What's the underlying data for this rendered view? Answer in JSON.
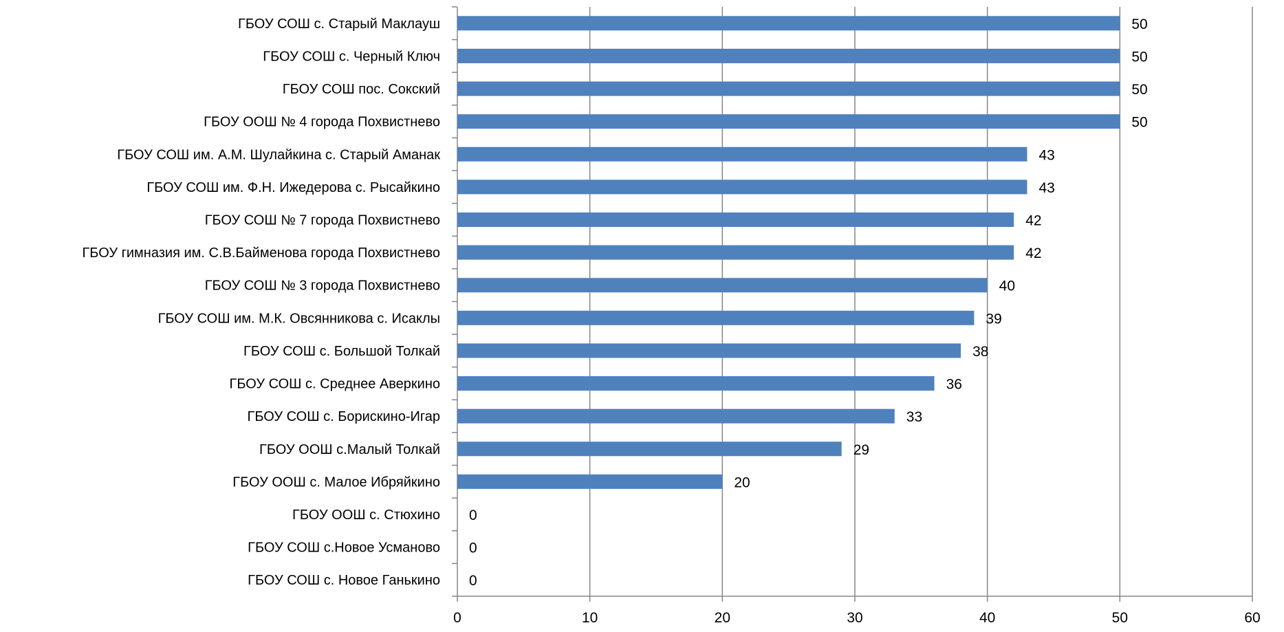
{
  "chart_data": {
    "type": "bar",
    "orientation": "horizontal",
    "title": "",
    "xlabel": "",
    "ylabel": "",
    "xlim": [
      0,
      60
    ],
    "x_ticks": [
      "0",
      "10",
      "20",
      "30",
      "40",
      "50",
      "60"
    ],
    "grid": "vertical",
    "legend": "none",
    "bar_color": "#4F81BD",
    "categories": [
      "ГБОУ СОШ с. Старый Маклауш",
      "ГБОУ СОШ с. Черный Ключ",
      "ГБОУ СОШ пос. Сокский",
      "ГБОУ ООШ № 4 города Похвистнево",
      "ГБОУ СОШ им. А.М. Шулайкина с. Старый Аманак",
      "ГБОУ СОШ им. Ф.Н. Ижедерова с. Рысайкино",
      "ГБОУ СОШ № 7  города Похвистнево",
      "ГБОУ гимназия им. С.В.Байменова города Похвистнево",
      "ГБОУ СОШ № 3 города Похвистнево",
      "ГБОУ СОШ им. М.К. Овсянникова с. Исаклы",
      "ГБОУ СОШ с. Большой Толкай",
      "ГБОУ СОШ с. Среднее Аверкино",
      "ГБОУ СОШ с. Борискино-Игар",
      "ГБОУ ООШ с.Малый Толкай",
      "ГБОУ ООШ с. Малое Ибряйкино",
      "ГБОУ ООШ с. Стюхино",
      "ГБОУ СОШ с.Новое Усманово",
      "ГБОУ СОШ с. Новое Ганькино"
    ],
    "values": [
      50,
      50,
      50,
      50,
      43,
      43,
      42,
      42,
      40,
      39,
      38,
      36,
      33,
      29,
      20,
      0,
      0,
      0
    ]
  }
}
